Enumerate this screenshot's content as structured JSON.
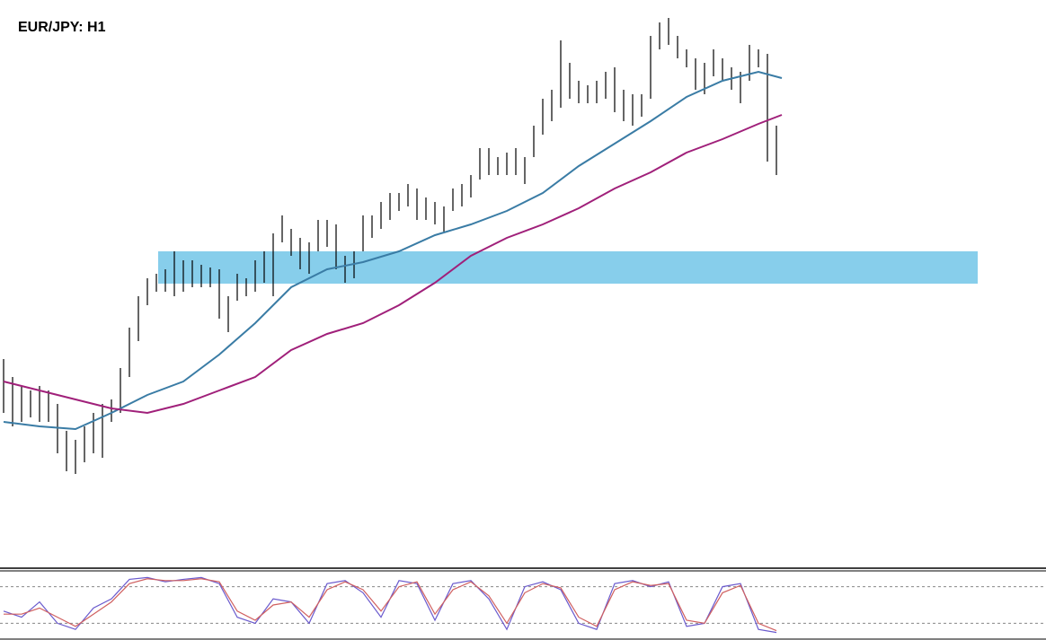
{
  "chart_data": [
    {
      "type": "ohlc",
      "title": "EUR/JPY: H1",
      "xlim": [
        -0.4,
        116
      ],
      "ylim": [
        0,
        630
      ],
      "color": "#000000",
      "high": [
        230,
        210,
        200,
        195,
        200,
        195,
        180,
        150,
        140,
        155,
        170,
        180,
        185,
        220,
        265,
        300,
        320,
        325,
        330,
        350,
        340,
        340,
        335,
        332,
        330,
        300,
        325,
        320,
        340,
        350,
        370,
        390,
        375,
        365,
        360,
        385,
        385,
        380,
        345,
        350,
        390,
        390,
        405,
        415,
        415,
        425,
        420,
        410,
        405,
        400,
        420,
        425,
        435,
        465,
        465,
        455,
        460,
        465,
        455,
        490,
        520,
        530,
        585,
        560,
        540,
        535,
        540,
        550,
        555,
        530,
        525,
        525,
        590,
        605,
        610,
        590,
        575,
        565,
        560,
        575,
        565,
        555,
        550,
        580,
        575,
        570,
        490
      ],
      "low": [
        170,
        155,
        160,
        165,
        160,
        160,
        125,
        105,
        102,
        115,
        125,
        120,
        160,
        170,
        210,
        250,
        290,
        305,
        305,
        300,
        305,
        310,
        310,
        310,
        275,
        260,
        295,
        300,
        305,
        315,
        300,
        360,
        345,
        330,
        325,
        350,
        355,
        330,
        315,
        320,
        350,
        365,
        375,
        385,
        395,
        400,
        385,
        385,
        380,
        372,
        395,
        400,
        410,
        430,
        435,
        435,
        435,
        435,
        425,
        455,
        480,
        495,
        510,
        520,
        515,
        515,
        515,
        520,
        505,
        495,
        490,
        500,
        520,
        575,
        580,
        565,
        555,
        530,
        525,
        545,
        540,
        530,
        515,
        540,
        555,
        450,
        435
      ],
      "zone": {
        "x": [
          17.2,
          108.4
        ],
        "y": [
          314,
          350
        ],
        "color": "#87ceeb"
      },
      "moving_averages": [
        {
          "color": "#3a7ca5",
          "x": [
            0,
            4,
            8,
            12,
            16,
            20,
            24,
            28,
            32,
            36,
            40,
            44,
            48,
            52,
            56,
            60,
            64,
            68,
            72,
            76,
            80,
            84,
            86.6
          ],
          "values": [
            160,
            155,
            152,
            170,
            190,
            205,
            235,
            270,
            310,
            330,
            338,
            350,
            368,
            380,
            395,
            415,
            445,
            470,
            495,
            522,
            540,
            550,
            543
          ]
        },
        {
          "color": "#a0207a",
          "x": [
            0,
            4,
            8,
            12,
            16,
            20,
            24,
            28,
            32,
            36,
            40,
            44,
            48,
            52,
            56,
            60,
            64,
            68,
            72,
            76,
            80,
            84,
            86.6
          ],
          "values": [
            205,
            195,
            185,
            175,
            170,
            180,
            195,
            210,
            240,
            258,
            270,
            290,
            315,
            345,
            365,
            380,
            398,
            420,
            438,
            460,
            475,
            492,
            502
          ]
        }
      ]
    },
    {
      "type": "line",
      "xlim": [
        -0.4,
        116
      ],
      "ylim": [
        0,
        100
      ],
      "levels": [
        20,
        80
      ],
      "x": [
        0,
        2,
        4,
        6,
        8,
        10,
        12,
        14,
        16,
        18,
        20,
        22,
        24,
        26,
        28,
        30,
        32,
        34,
        36,
        38,
        40,
        42,
        44,
        46,
        48,
        50,
        52,
        54,
        56,
        58,
        60,
        62,
        64,
        66,
        68,
        70,
        72,
        74,
        76,
        78,
        80,
        82,
        84,
        86
      ],
      "series": [
        {
          "color": "#6a5acd",
          "values": [
            40,
            30,
            55,
            20,
            10,
            45,
            60,
            92,
            95,
            88,
            92,
            95,
            85,
            30,
            20,
            60,
            55,
            20,
            85,
            90,
            70,
            30,
            90,
            85,
            25,
            85,
            90,
            60,
            10,
            80,
            88,
            75,
            20,
            10,
            85,
            90,
            80,
            88,
            15,
            20,
            80,
            85,
            10,
            5
          ]
        },
        {
          "color": "#d06060",
          "values": [
            35,
            35,
            45,
            30,
            15,
            35,
            55,
            85,
            93,
            90,
            90,
            93,
            88,
            40,
            25,
            50,
            55,
            30,
            75,
            88,
            75,
            40,
            80,
            88,
            35,
            75,
            88,
            65,
            20,
            70,
            85,
            78,
            30,
            15,
            75,
            88,
            82,
            85,
            25,
            20,
            70,
            82,
            20,
            8
          ]
        }
      ]
    }
  ]
}
